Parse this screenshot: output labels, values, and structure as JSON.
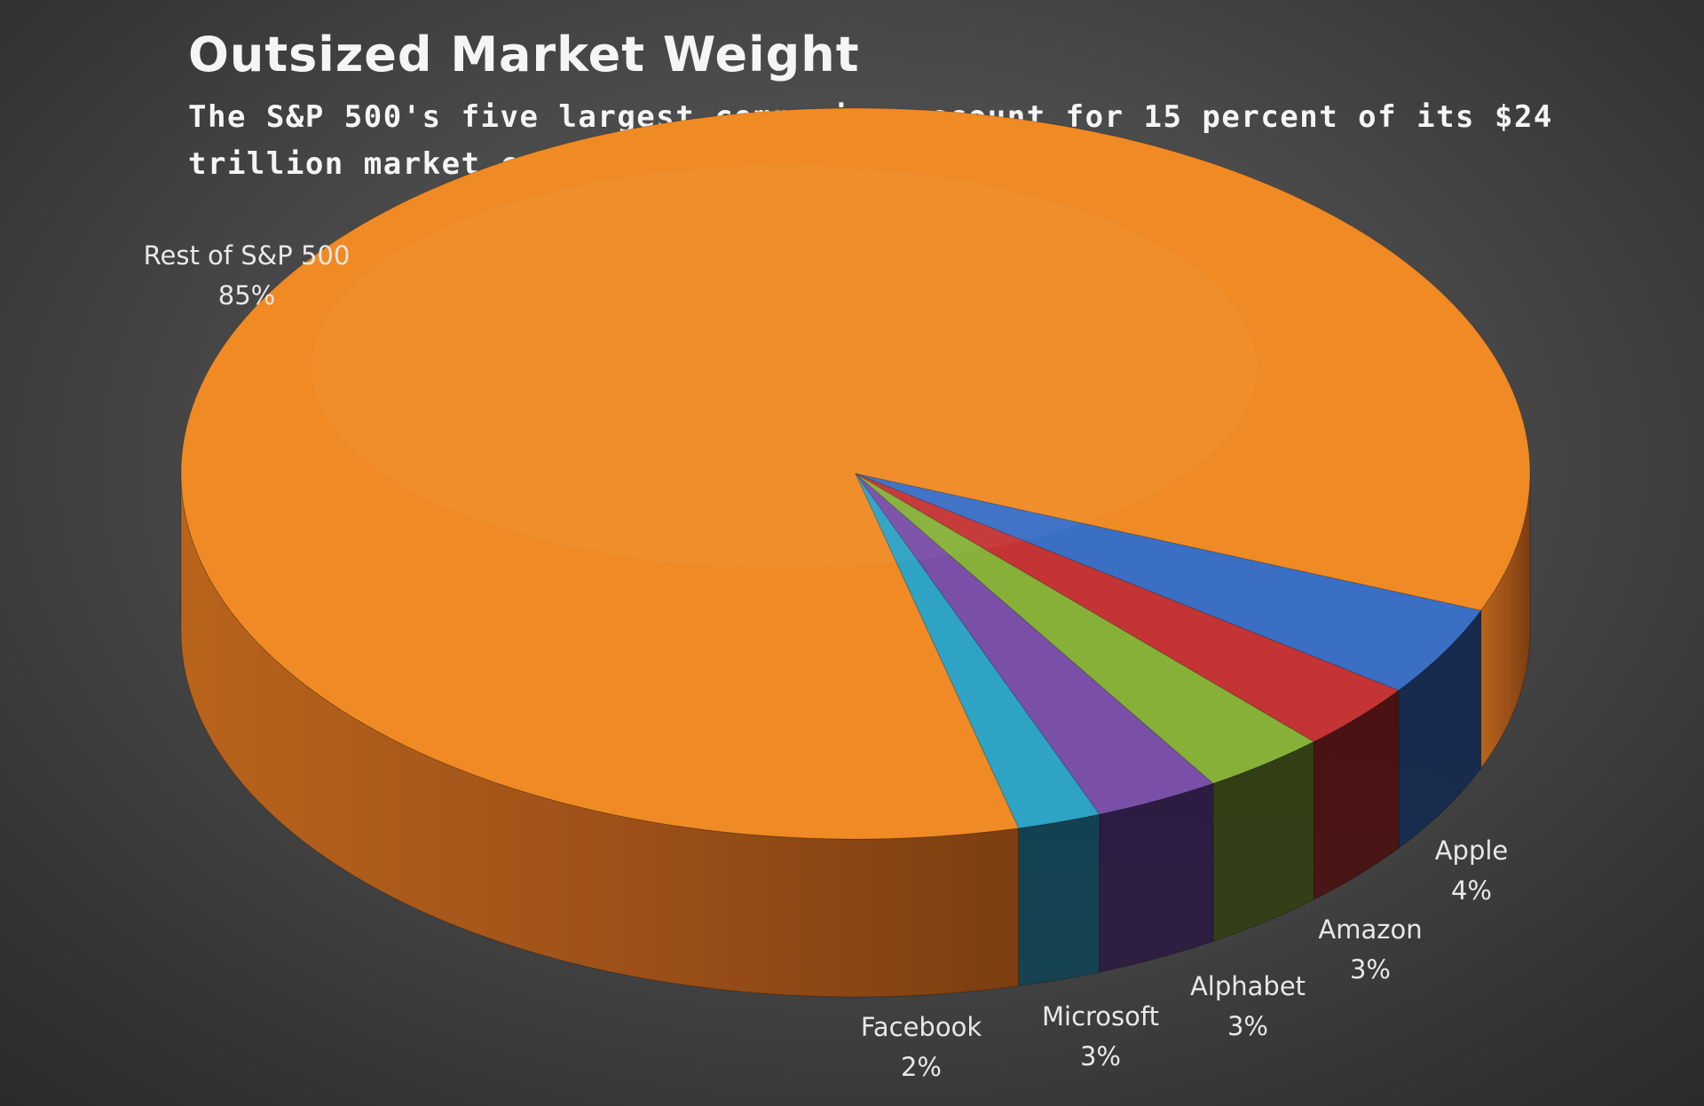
{
  "chart_data": {
    "type": "pie",
    "title": "Outsized Market Weight",
    "subtitle": "The S&P 500's five largest companies account for 15 percent of its $24 trillion market capitalization",
    "categories": [
      "Rest of S&P 500",
      "Apple",
      "Amazon",
      "Alphabet",
      "Microsoft",
      "Facebook"
    ],
    "values": [
      85,
      4,
      3,
      3,
      3,
      2
    ],
    "value_labels": [
      "85%",
      "4%",
      "3%",
      "3%",
      "3%",
      "2%"
    ],
    "colors": [
      "#F08A24",
      "#3A6FC4",
      "#C43434",
      "#86B038",
      "#7A4FA8",
      "#2EA3C4"
    ],
    "side_colors": [
      "#A4561A",
      "#152A4E",
      "#4A1212",
      "#323F14",
      "#2C1C42",
      "#124252"
    ],
    "style": "3d-tilted"
  }
}
